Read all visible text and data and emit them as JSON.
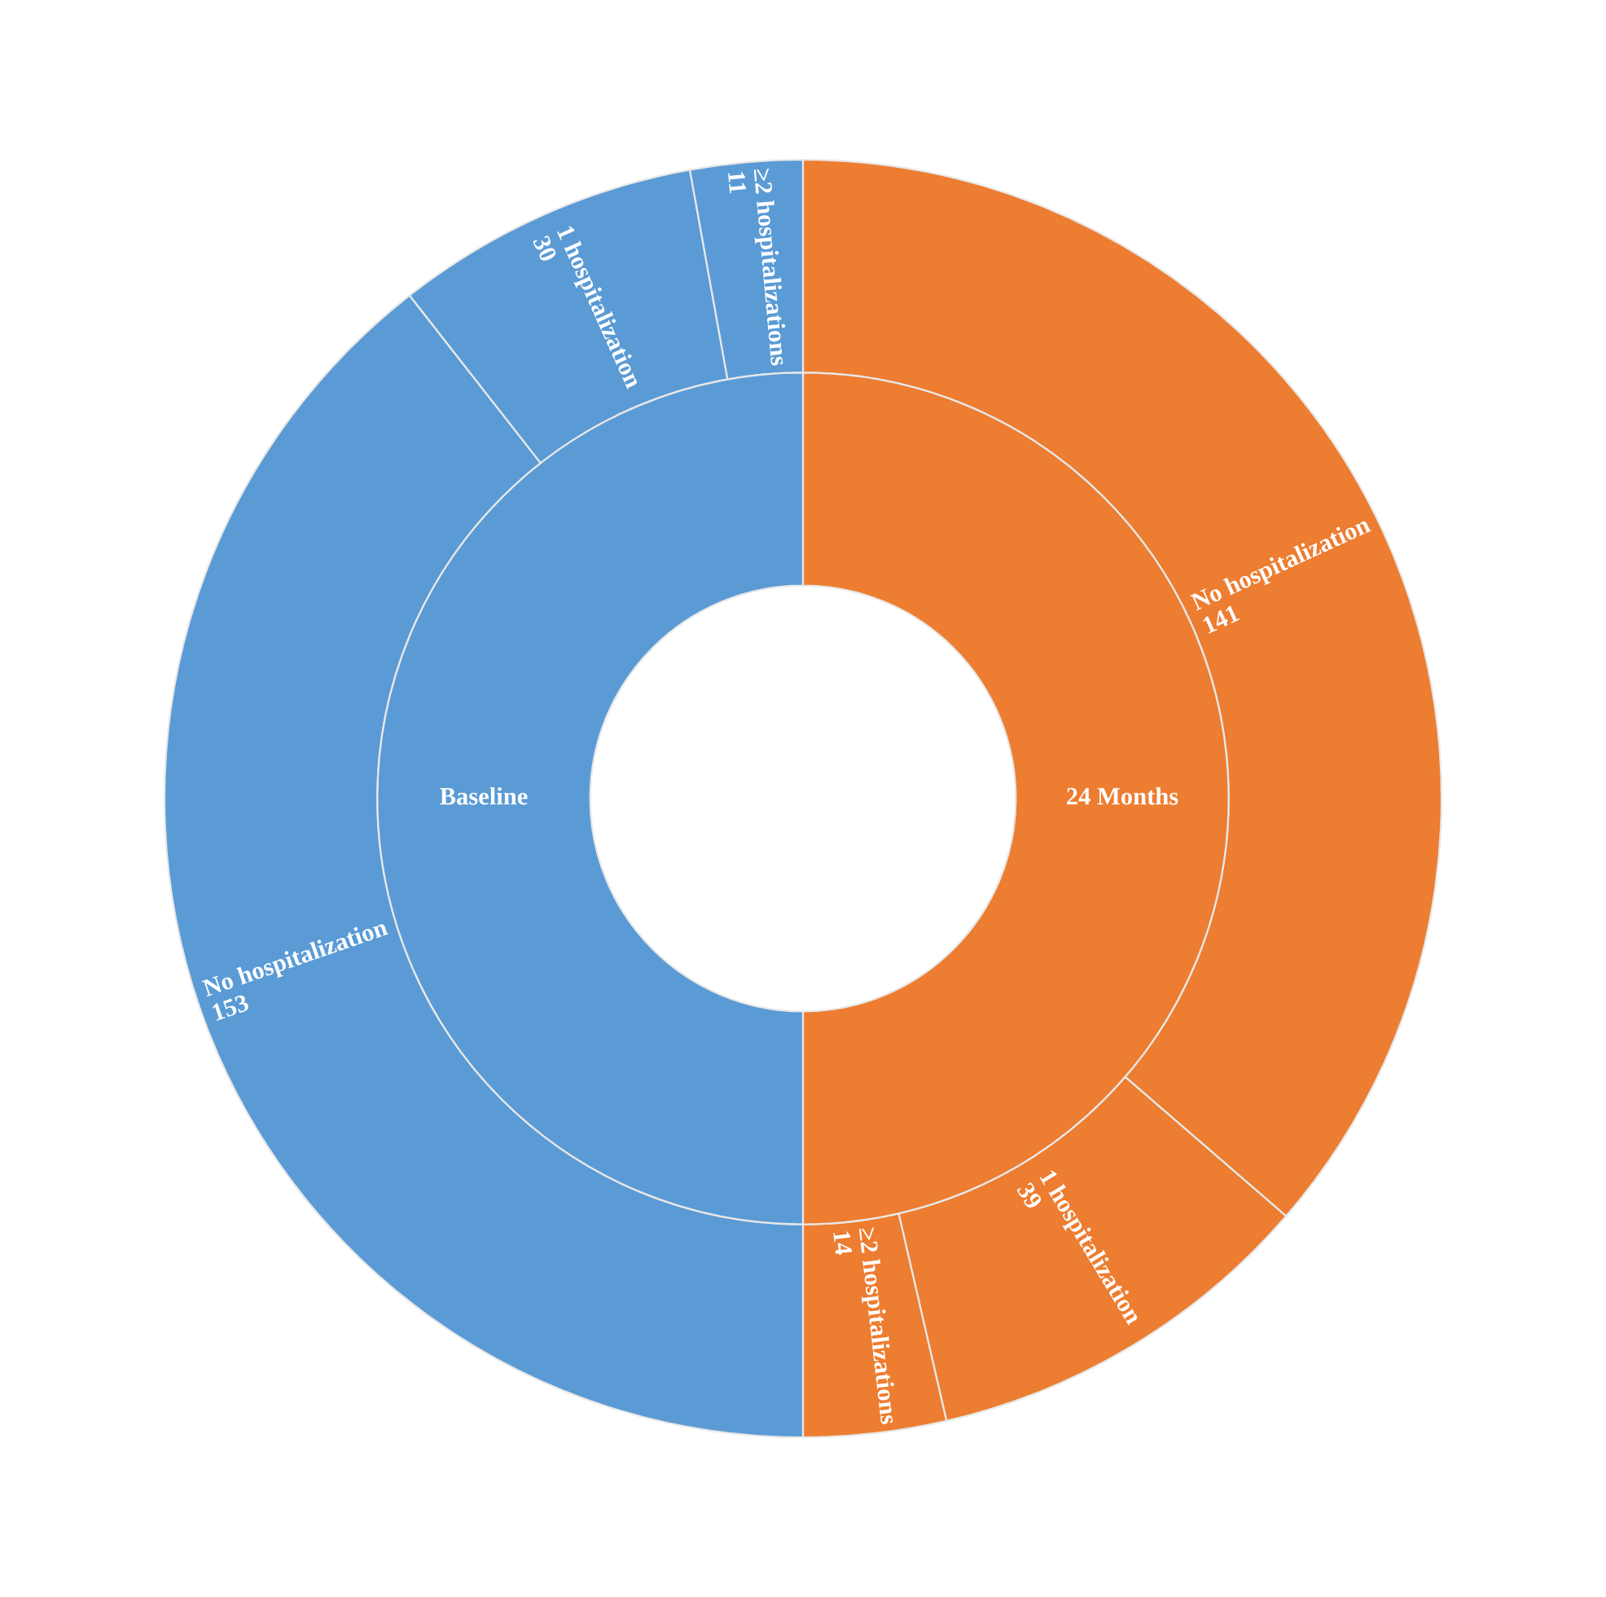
{
  "chart_data": {
    "type": "donut",
    "categories": [
      "No hospitalization",
      "1 hospitalization",
      "≥2 hospitalizations",
      "No hospitalization",
      "1 hospitalization",
      "≥2 hospitalizations"
    ],
    "annotations": [
      "24 Months",
      "Baseline"
    ],
    "series": [
      {
        "values": [
          141,
          39,
          14,
          153,
          30,
          11
        ],
        "colors": [
          "#ed7d31",
          "#ed7d31",
          "#ed7d31",
          "#5b9bd5",
          "#5b9bd5",
          "#5b9bd5"
        ],
        "value_labels": [
          "141",
          "39",
          "14",
          "153",
          "30",
          "11"
        ]
      },
      {
        "values": [
          50,
          null,
          null,
          50,
          null,
          null
        ],
        "colors": [
          "#ed7d31",
          null,
          null,
          "#5b9bd5",
          null,
          null
        ]
      }
    ]
  }
}
